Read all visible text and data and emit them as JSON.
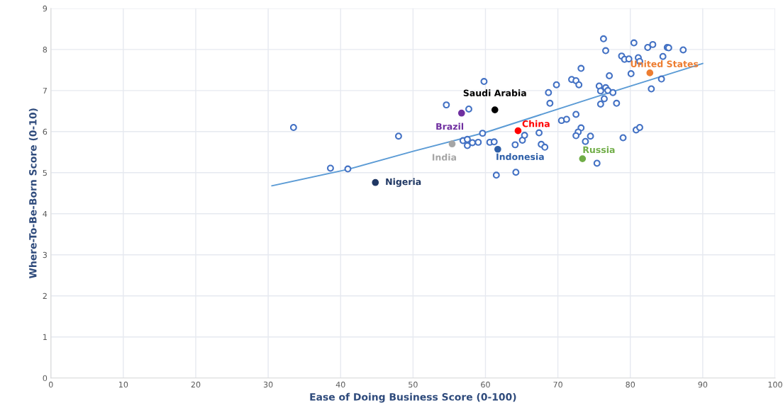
{
  "chart_data": {
    "type": "scatter",
    "xlabel": "Ease of Doing Business Score (0-100)",
    "ylabel": "Where-To-Be-Born Score (0-10)",
    "xlim": [
      0,
      100
    ],
    "ylim": [
      0,
      9
    ],
    "xticks": [
      0,
      10,
      20,
      30,
      40,
      50,
      60,
      70,
      80,
      90,
      100
    ],
    "yticks": [
      0,
      1,
      2,
      3,
      4,
      5,
      6,
      7,
      8,
      9
    ],
    "grid": true,
    "legend": false,
    "marker": "circle",
    "series": [
      {
        "color": "#4472c4",
        "x": [
          33.5,
          38.6,
          41.0,
          48.0,
          54.6,
          57.7,
          59.8,
          56.9,
          57.5,
          57.5,
          58.2,
          59.0,
          59.6,
          60.6,
          61.2,
          61.5,
          64.1,
          64.2,
          65.1,
          65.4,
          67.4,
          67.7,
          68.2,
          68.7,
          68.9,
          69.8,
          70.5,
          71.2,
          71.9,
          72.5,
          72.9,
          73.2,
          72.5,
          73.2,
          72.8,
          72.5,
          74.5,
          73.8,
          75.4,
          76.3,
          76.6,
          77.1,
          75.7,
          75.9,
          76.6,
          76.9,
          77.6,
          76.4,
          75.9,
          78.1,
          79.0,
          78.8,
          79.2,
          79.8,
          80.5,
          81.1,
          81.3,
          80.1,
          82.4,
          83.1,
          82.9,
          84.3,
          84.5,
          85.1,
          85.3,
          87.3,
          80.8,
          81.3
        ],
        "values": [
          6.1,
          5.11,
          5.09,
          5.89,
          6.65,
          6.55,
          7.22,
          5.78,
          5.81,
          5.66,
          5.73,
          5.74,
          5.96,
          5.74,
          5.75,
          4.94,
          5.68,
          5.01,
          5.79,
          5.91,
          5.97,
          5.69,
          5.62,
          6.95,
          6.69,
          7.14,
          6.27,
          6.3,
          7.27,
          7.24,
          7.14,
          7.54,
          6.42,
          6.09,
          5.99,
          5.9,
          5.89,
          5.76,
          5.23,
          8.26,
          7.97,
          7.36,
          7.11,
          6.99,
          7.07,
          7.0,
          6.95,
          6.8,
          6.67,
          6.69,
          5.85,
          7.84,
          7.76,
          7.77,
          8.16,
          7.8,
          7.71,
          7.41,
          8.05,
          8.12,
          7.04,
          7.28,
          7.83,
          8.05,
          8.04,
          7.99,
          6.04,
          6.1
        ]
      },
      {
        "name": "Brazil",
        "color": "#7030a0",
        "x": [
          56.7
        ],
        "values": [
          6.45
        ]
      },
      {
        "name": "Saudi Arabia",
        "color": "#000000",
        "x": [
          61.3
        ],
        "values": [
          6.53
        ]
      },
      {
        "name": "India",
        "color": "#a6a6a6",
        "x": [
          55.4
        ],
        "values": [
          5.7
        ]
      },
      {
        "name": "Nigeria",
        "color": "#203864",
        "x": [
          44.8
        ],
        "values": [
          4.76
        ]
      },
      {
        "name": "China",
        "color": "#ff0000",
        "x": [
          64.5
        ],
        "values": [
          6.02
        ]
      },
      {
        "name": "Indonesia",
        "color": "#2e5fa8",
        "x": [
          61.7
        ],
        "values": [
          5.57
        ]
      },
      {
        "name": "Russia",
        "color": "#70ad47",
        "x": [
          73.4
        ],
        "values": [
          5.34
        ]
      },
      {
        "name": "United States",
        "color": "#ed7d31",
        "x": [
          82.7
        ],
        "values": [
          7.43
        ]
      },
      {
        "type": "line",
        "marker": "none",
        "color": "#5b9bd5",
        "x": [
          30.5,
          41,
          50,
          60,
          75,
          90
        ],
        "values": [
          4.68,
          5.08,
          5.52,
          5.98,
          6.83,
          7.66
        ]
      }
    ]
  }
}
